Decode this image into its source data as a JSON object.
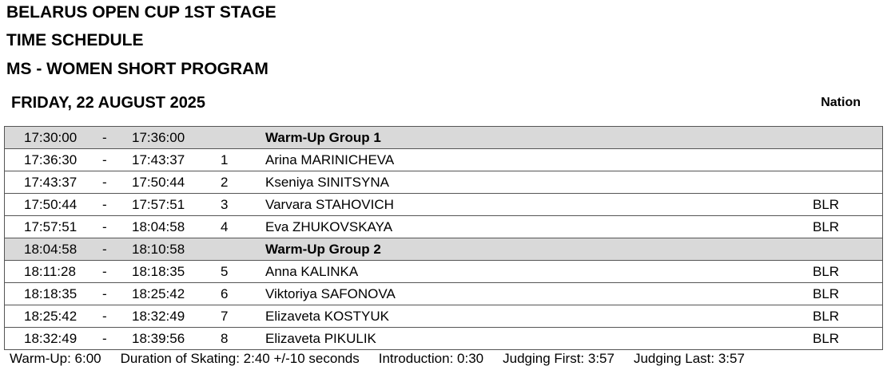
{
  "header": {
    "lines": [
      "BELARUS OPEN CUP 1ST STAGE",
      "TIME SCHEDULE",
      "MS - WOMEN SHORT PROGRAM"
    ],
    "date": "FRIDAY, 22 AUGUST 2025",
    "nation_header": "Nation"
  },
  "table": {
    "rows": [
      {
        "start": "17:30:00",
        "sep": "-",
        "end": "17:36:00",
        "name": "Warm-Up Group 1",
        "group": true
      },
      {
        "start": "17:36:30",
        "sep": "-",
        "end": "17:43:37",
        "no": "1",
        "name": "Arina MARINICHEVA"
      },
      {
        "start": "17:43:37",
        "sep": "-",
        "end": "17:50:44",
        "no": "2",
        "name": "Kseniya SINITSYNA"
      },
      {
        "start": "17:50:44",
        "sep": "-",
        "end": "17:57:51",
        "no": "3",
        "name": "Varvara STAHOVICH",
        "nation": "BLR"
      },
      {
        "start": "17:57:51",
        "sep": "-",
        "end": "18:04:58",
        "no": "4",
        "name": "Eva ZHUKOVSKAYA",
        "nation": "BLR"
      },
      {
        "start": "18:04:58",
        "sep": "-",
        "end": "18:10:58",
        "name": "Warm-Up Group 2",
        "group": true
      },
      {
        "start": "18:11:28",
        "sep": "-",
        "end": "18:18:35",
        "no": "5",
        "name": "Anna KALINKA",
        "nation": "BLR"
      },
      {
        "start": "18:18:35",
        "sep": "-",
        "end": "18:25:42",
        "no": "6",
        "name": "Viktoriya SAFONOVA",
        "nation": "BLR"
      },
      {
        "start": "18:25:42",
        "sep": "-",
        "end": "18:32:49",
        "no": "7",
        "name": "Elizaveta KOSTYUK",
        "nation": "BLR"
      },
      {
        "start": "18:32:49",
        "sep": "-",
        "end": "18:39:56",
        "no": "8",
        "name": "Elizaveta PIKULIK",
        "nation": "BLR"
      }
    ]
  },
  "footer": {
    "items": [
      "Warm-Up: 6:00",
      "Duration of Skating: 2:40 +/-10 seconds",
      "Introduction: 0:30",
      "Judging First: 3:57",
      "Judging Last: 3:57"
    ]
  }
}
